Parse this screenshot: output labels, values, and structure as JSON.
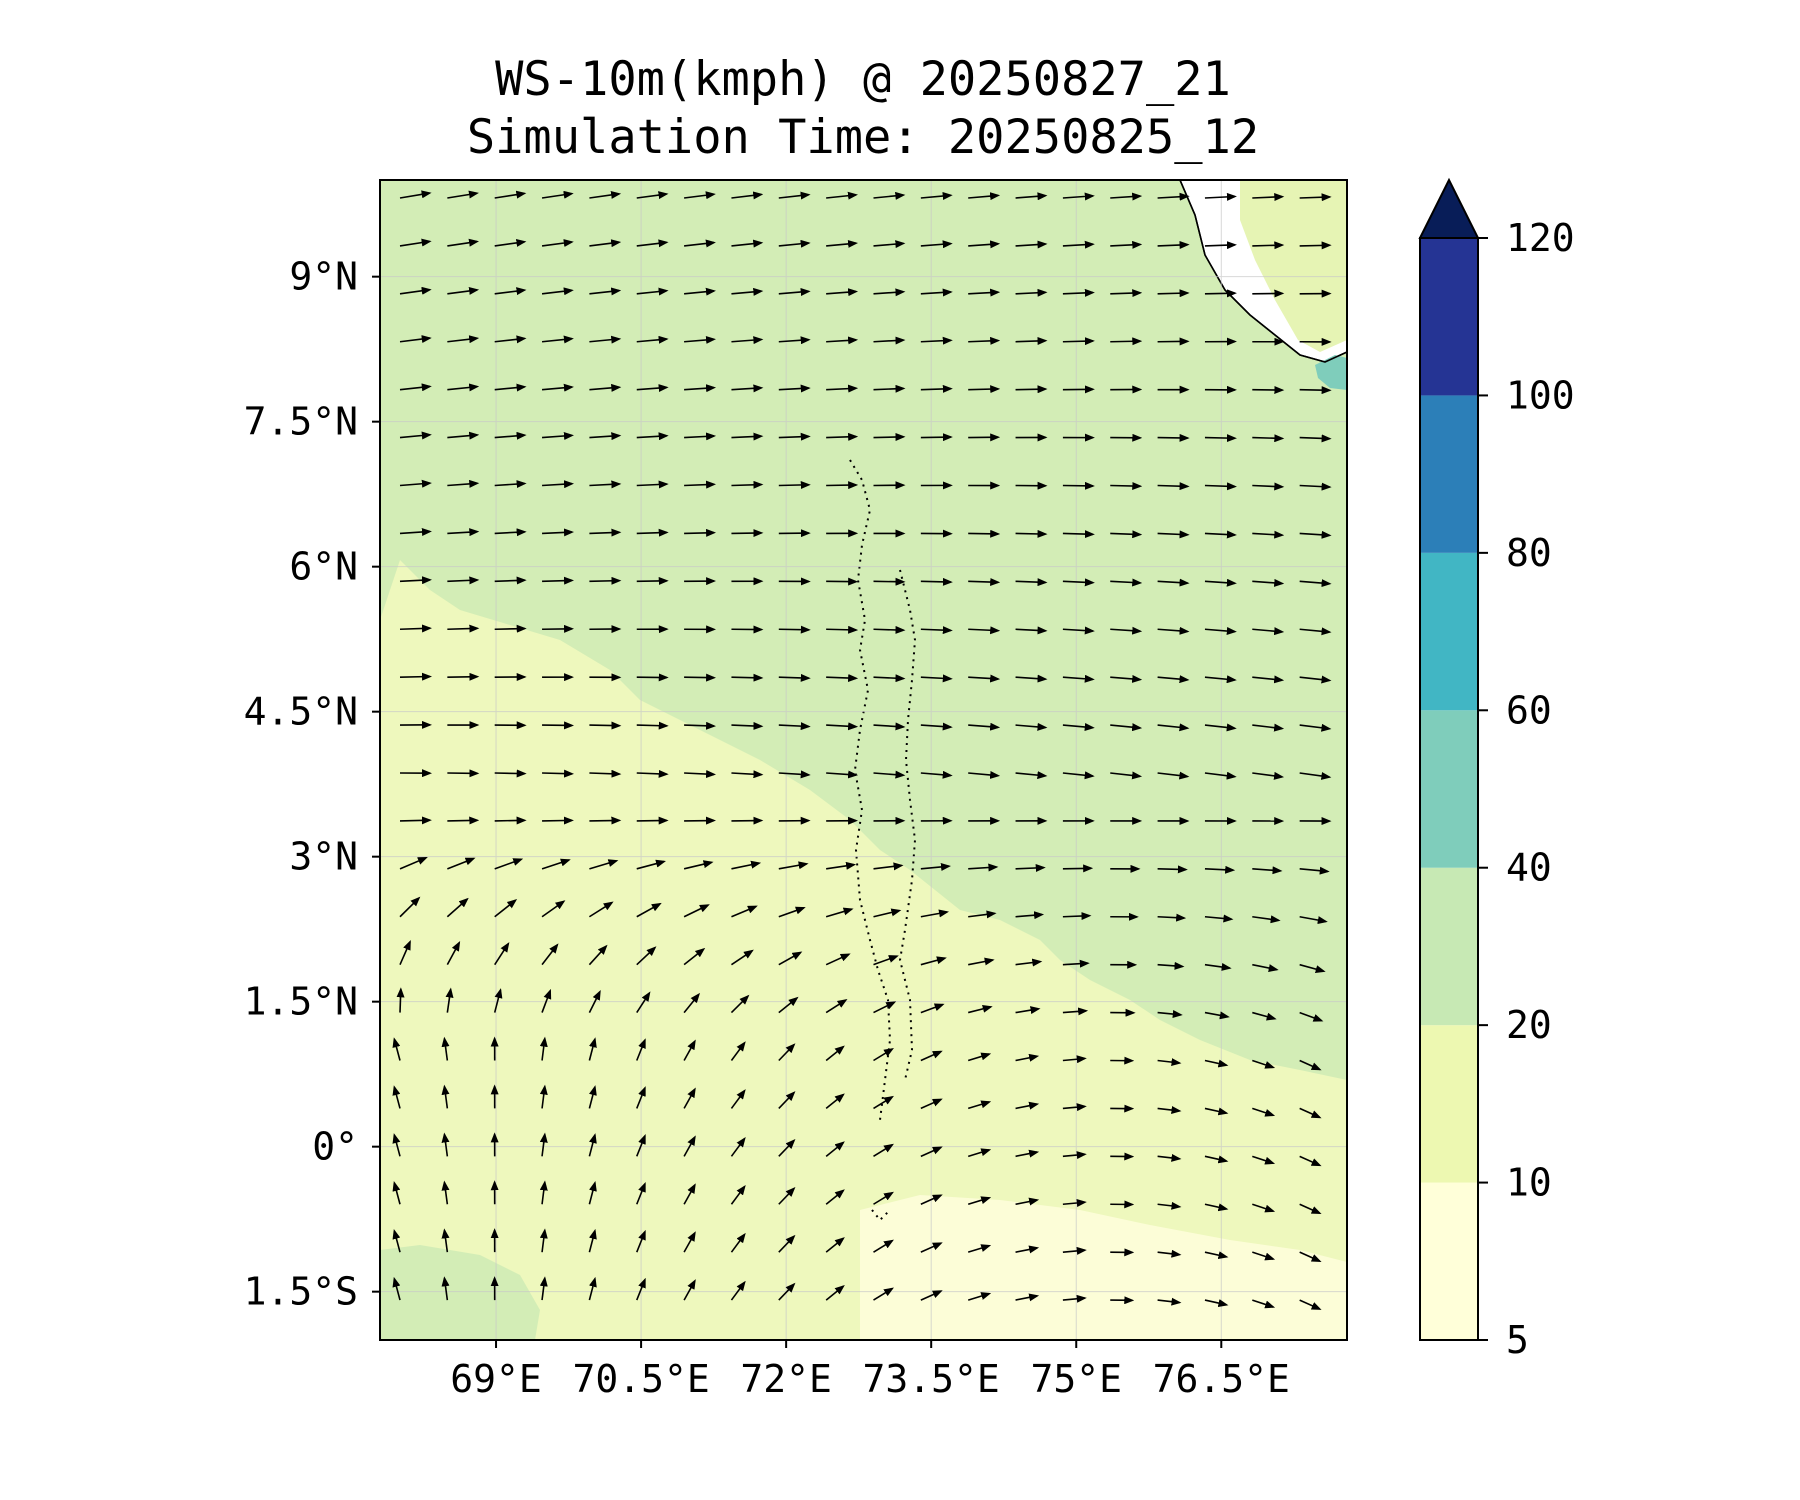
{
  "figure": {
    "title_line1": "WS-10m(kmph) @ 20250827_21",
    "title_line2": "Simulation Time: 20250825_12"
  },
  "map": {
    "lon_range": [
      67.8,
      77.8
    ],
    "lat_range": [
      -2.0,
      10.0
    ],
    "x_ticks": [
      {
        "value": 69.0,
        "label": "69°E"
      },
      {
        "value": 70.5,
        "label": "70.5°E"
      },
      {
        "value": 72.0,
        "label": "72°E"
      },
      {
        "value": 73.5,
        "label": "73.5°E"
      },
      {
        "value": 75.0,
        "label": "75°E"
      },
      {
        "value": 76.5,
        "label": "76.5°E"
      }
    ],
    "y_ticks": [
      {
        "value": 9.0,
        "label": "9°N"
      },
      {
        "value": 7.5,
        "label": "7.5°N"
      },
      {
        "value": 6.0,
        "label": "6°N"
      },
      {
        "value": 4.5,
        "label": "4.5°N"
      },
      {
        "value": 3.0,
        "label": "3°N"
      },
      {
        "value": 1.5,
        "label": "1.5°N"
      },
      {
        "value": 0.0,
        "label": "0°"
      },
      {
        "value": -1.5,
        "label": "1.5°S"
      }
    ],
    "gridlines": true,
    "background_color": "#d3edb6"
  },
  "colorbar": {
    "levels": [
      5,
      10,
      20,
      40,
      60,
      80,
      100,
      120
    ],
    "labels": [
      "5",
      "10",
      "20",
      "40",
      "60",
      "80",
      "100",
      "120"
    ],
    "colors": [
      "#ffffd9",
      "#edf8b1",
      "#c7e9b4",
      "#7fcdbb",
      "#41b6c4",
      "#2c7fb8",
      "#253494"
    ],
    "extend_color": "#081d58",
    "extend": "max"
  }
}
